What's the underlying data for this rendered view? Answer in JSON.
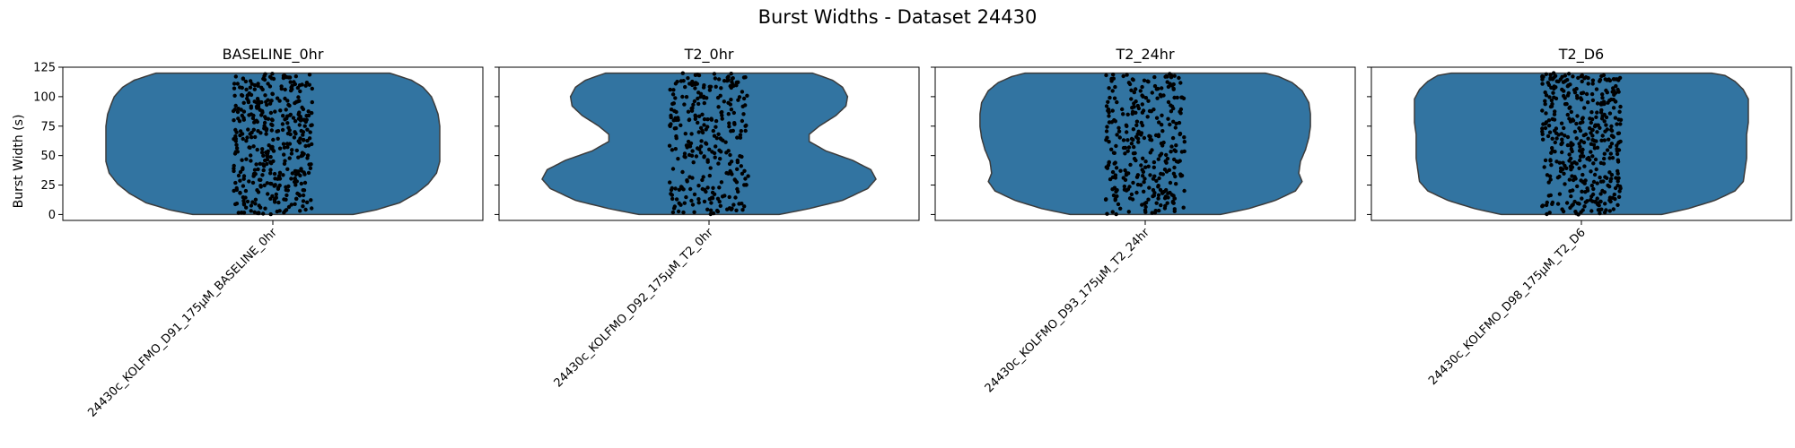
{
  "chart_data": {
    "type": "violin",
    "title": "Burst Widths - Dataset 24430",
    "ylabel": "Burst Width (s)",
    "ylim": [
      -5,
      125
    ],
    "yticks": [
      0,
      25,
      50,
      75,
      100,
      125
    ],
    "sharey": true,
    "grid": false,
    "violin_color": "#3274a1",
    "point_color": "#000000",
    "panels": [
      {
        "title": "BASELINE_0hr",
        "category": "24430c_KOLFMO_D91_175µM_BASELINE_0hr",
        "n_points": 420,
        "profile": [
          [
            0,
            0.48
          ],
          [
            4,
            0.62
          ],
          [
            10,
            0.76
          ],
          [
            18,
            0.86
          ],
          [
            26,
            0.93
          ],
          [
            35,
            0.98
          ],
          [
            45,
            1.0
          ],
          [
            55,
            1.0
          ],
          [
            65,
            1.0
          ],
          [
            75,
            1.0
          ],
          [
            85,
            0.99
          ],
          [
            93,
            0.97
          ],
          [
            100,
            0.95
          ],
          [
            108,
            0.9
          ],
          [
            114,
            0.83
          ],
          [
            120,
            0.7
          ]
        ]
      },
      {
        "title": "T2_0hr",
        "category": "24430c_KOLFMO_D92_175µM_T2_0hr",
        "n_points": 300,
        "profile": [
          [
            0,
            0.42
          ],
          [
            5,
            0.6
          ],
          [
            12,
            0.8
          ],
          [
            22,
            0.95
          ],
          [
            30,
            1.0
          ],
          [
            38,
            0.97
          ],
          [
            46,
            0.86
          ],
          [
            54,
            0.7
          ],
          [
            62,
            0.6
          ],
          [
            68,
            0.6
          ],
          [
            75,
            0.66
          ],
          [
            84,
            0.76
          ],
          [
            92,
            0.82
          ],
          [
            100,
            0.83
          ],
          [
            108,
            0.8
          ],
          [
            114,
            0.74
          ],
          [
            120,
            0.62
          ]
        ]
      },
      {
        "title": "T2_24hr",
        "category": "24430c_KOLFMO_D93_175µM_T2_24hr",
        "n_points": 320,
        "profile": [
          [
            0,
            0.45
          ],
          [
            5,
            0.62
          ],
          [
            12,
            0.78
          ],
          [
            20,
            0.9
          ],
          [
            28,
            0.94
          ],
          [
            35,
            0.92
          ],
          [
            45,
            0.93
          ],
          [
            55,
            0.96
          ],
          [
            65,
            0.98
          ],
          [
            75,
            0.99
          ],
          [
            85,
            0.99
          ],
          [
            95,
            0.98
          ],
          [
            105,
            0.94
          ],
          [
            112,
            0.88
          ],
          [
            117,
            0.8
          ],
          [
            120,
            0.72
          ]
        ]
      },
      {
        "title": "T2_D6",
        "category": "24430c_KOLFMO_D98_175µM_T2_D6",
        "n_points": 420,
        "profile": [
          [
            0,
            0.48
          ],
          [
            5,
            0.64
          ],
          [
            12,
            0.8
          ],
          [
            20,
            0.92
          ],
          [
            28,
            0.97
          ],
          [
            38,
            0.98
          ],
          [
            48,
            0.99
          ],
          [
            58,
            0.99
          ],
          [
            68,
            0.99
          ],
          [
            78,
            1.0
          ],
          [
            88,
            1.0
          ],
          [
            98,
            1.0
          ],
          [
            106,
            0.97
          ],
          [
            113,
            0.92
          ],
          [
            118,
            0.86
          ],
          [
            120,
            0.78
          ]
        ]
      }
    ]
  }
}
